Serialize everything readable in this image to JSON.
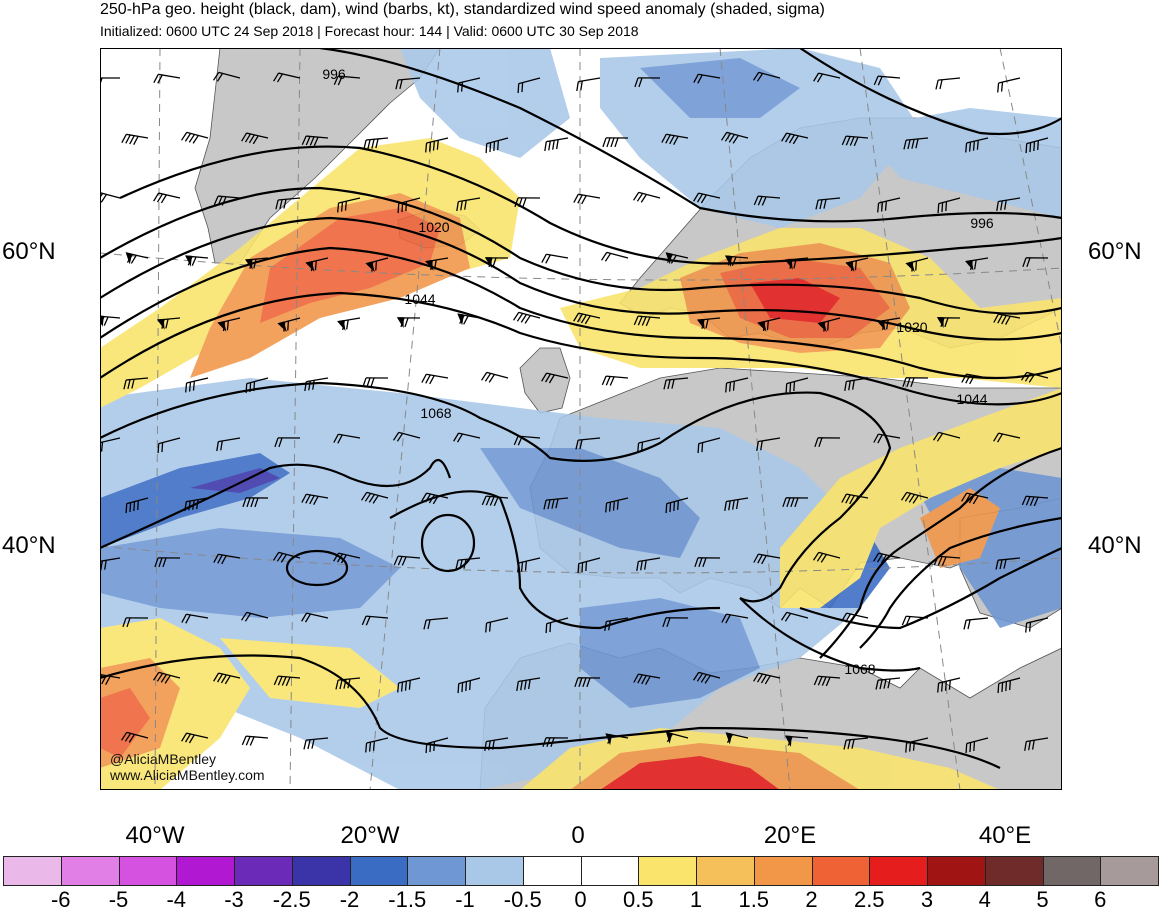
{
  "header": {
    "title": "250-hPa geo. height (black, dam), wind (barbs, kt), standardized wind speed anomaly (shaded, sigma)",
    "subtitle": "Initialized: 0600 UTC 24 Sep 2018 | Forecast hour: 144 | Valid: 0600 UTC 30 Sep 2018"
  },
  "map": {
    "latitude_labels": [
      "60°N",
      "40°N"
    ],
    "longitude_labels": [
      "40°W",
      "20°W",
      "0",
      "20°E",
      "40°E"
    ],
    "contour_labels": [
      "996",
      "1020",
      "1044",
      "1068",
      "996",
      "1020",
      "1044",
      "1068"
    ],
    "credits": [
      "@AliciaMBentley",
      "www.AliciaMBentley.com"
    ],
    "land_color": "#c8c8c8",
    "ocean_color": "#ffffff"
  },
  "colorbar": {
    "tick_labels": [
      "-6",
      "-5",
      "-4",
      "-3",
      "-2.5",
      "-2",
      "-1.5",
      "-1",
      "-0.5",
      "0",
      "0.5",
      "1",
      "1.5",
      "2",
      "2.5",
      "3",
      "4",
      "5",
      "6"
    ],
    "colors": [
      "#ebb8ea",
      "#e27fe6",
      "#d552e0",
      "#b019d1",
      "#6b2ab8",
      "#3a34a8",
      "#3a6cc4",
      "#6e97d4",
      "#a9c8e8",
      "#ffffff",
      "#ffffff",
      "#fae46b",
      "#f5c05a",
      "#f29648",
      "#ef6236",
      "#e61d1d",
      "#a11414",
      "#6f2a2a",
      "#716767",
      "#a79a9a"
    ]
  }
}
